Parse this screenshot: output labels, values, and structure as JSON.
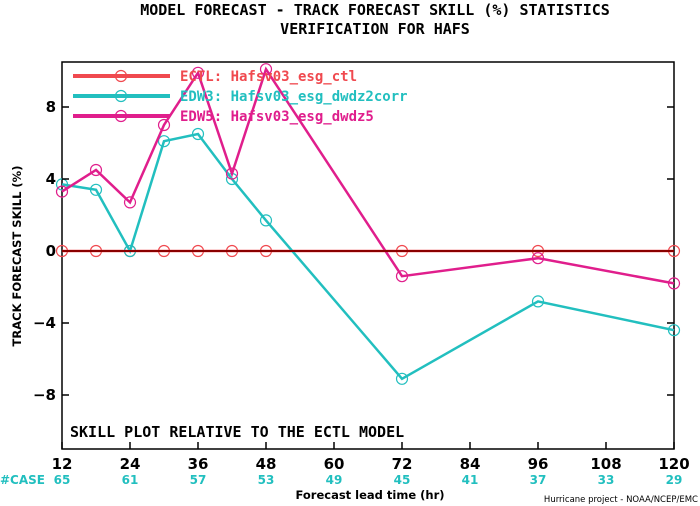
{
  "chart_data": {
    "type": "line",
    "title": "MODEL FORECAST - TRACK FORECAST SKILL (%) STATISTICS",
    "subtitle": "VERIFICATION FOR HAFS",
    "xlabel": "Forecast lead time (hr)",
    "ylabel": "TRACK FORECAST SKILL (%)",
    "xlim": [
      12,
      120
    ],
    "ylim": [
      -11,
      10.5
    ],
    "x_ticks": [
      12,
      24,
      36,
      48,
      60,
      72,
      84,
      96,
      108,
      120
    ],
    "y_ticks": [
      8,
      4,
      0,
      -4,
      -8
    ],
    "y_tick_labels": [
      "8",
      "4",
      "0",
      "−4",
      "−8"
    ],
    "grid": false,
    "legend_position": "top-left",
    "annotation": "SKILL PLOT RELATIVE TO THE ECTL MODEL",
    "case_label": "#CASE",
    "case_counts": [
      {
        "x": 12,
        "label": "65"
      },
      {
        "x": 24,
        "label": "61"
      },
      {
        "x": 36,
        "label": "57"
      },
      {
        "x": 48,
        "label": "53"
      },
      {
        "x": 60,
        "label": "49"
      },
      {
        "x": 72,
        "label": "45"
      },
      {
        "x": 84,
        "label": "41"
      },
      {
        "x": 96,
        "label": "37"
      },
      {
        "x": 108,
        "label": "33"
      },
      {
        "x": 120,
        "label": "29"
      }
    ],
    "series": [
      {
        "name": "ECTL: Hafsv03_esg_ctl",
        "color": "#f0494f",
        "x": [
          12,
          18,
          24,
          30,
          36,
          42,
          48,
          72,
          96,
          120
        ],
        "y": [
          0,
          0,
          0,
          0,
          0,
          0,
          0,
          0,
          0,
          0
        ]
      },
      {
        "name": "EDW3: Hafsv03_esg_dwdz2corr",
        "color": "#22bfbf",
        "x": [
          12,
          18,
          24,
          30,
          36,
          42,
          48,
          72,
          96,
          120
        ],
        "y": [
          3.7,
          3.4,
          0.0,
          6.1,
          6.5,
          4.0,
          1.7,
          -7.1,
          -2.8,
          -4.4
        ]
      },
      {
        "name": "EDW5: Hafsv03_esg_dwdz5",
        "color": "#e01e8c",
        "x": [
          12,
          18,
          24,
          30,
          36,
          42,
          48,
          72,
          96,
          120
        ],
        "y": [
          3.3,
          4.5,
          2.7,
          7.0,
          9.9,
          4.3,
          10.1,
          -1.4,
          -0.4,
          -1.8
        ]
      }
    ]
  },
  "credit": "Hurricane project - NOAA/NCEP/EMC"
}
